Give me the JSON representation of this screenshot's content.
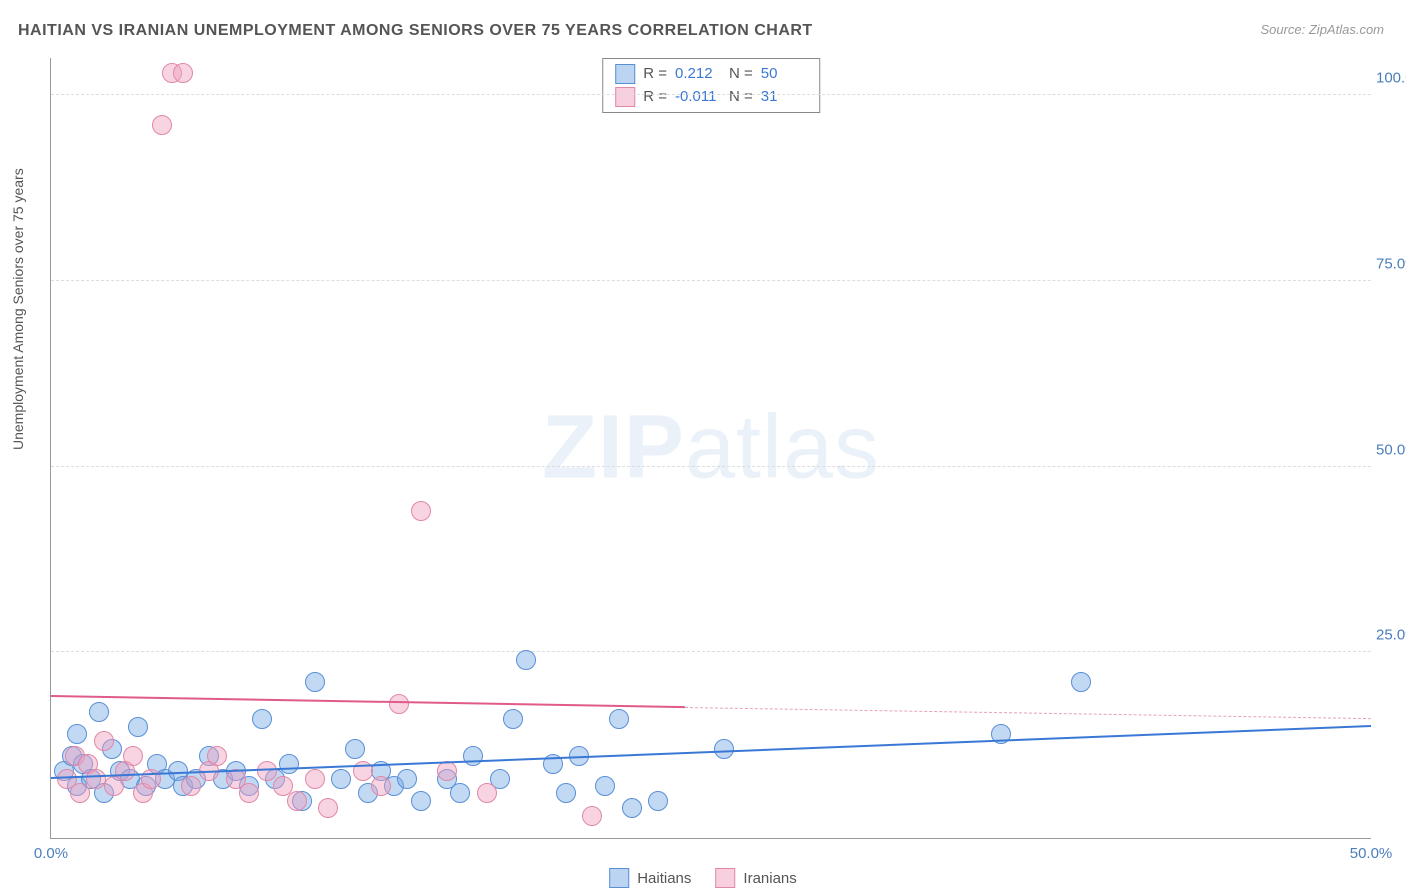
{
  "title": "HAITIAN VS IRANIAN UNEMPLOYMENT AMONG SENIORS OVER 75 YEARS CORRELATION CHART",
  "source_label": "Source: ZipAtlas.com",
  "ylabel": "Unemployment Among Seniors over 75 years",
  "watermark_bold": "ZIP",
  "watermark_rest": "atlas",
  "chart": {
    "type": "scatter",
    "xlim": [
      0,
      50
    ],
    "ylim": [
      0,
      105
    ],
    "xticks": [
      {
        "v": 0,
        "label": "0.0%"
      },
      {
        "v": 50,
        "label": "50.0%"
      }
    ],
    "yticks": [
      {
        "v": 25,
        "label": "25.0%"
      },
      {
        "v": 50,
        "label": "50.0%"
      },
      {
        "v": 75,
        "label": "75.0%"
      },
      {
        "v": 100,
        "label": "100.0%"
      }
    ],
    "colors": {
      "blue_fill": "rgba(120,170,230,0.45)",
      "blue_stroke": "#5a8fd6",
      "blue_line": "#3a78d6",
      "pink_fill": "rgba(240,160,190,0.45)",
      "pink_stroke": "#e088a8",
      "pink_line": "#e05a8a",
      "grid": "#dddddd",
      "axis": "#999999",
      "text": "#555555",
      "tick_text": "#4a7ebb",
      "background": "#ffffff"
    },
    "marker_radius": 9,
    "series": [
      {
        "name": "Haitians",
        "color": "blue",
        "r_value": "0.212",
        "n_value": "50",
        "trend": {
          "x1": 0,
          "y1": 8,
          "x2": 50,
          "y2": 15,
          "dash_after_x": 50
        },
        "points": [
          [
            0.5,
            9
          ],
          [
            0.8,
            11
          ],
          [
            1.0,
            7
          ],
          [
            1.2,
            10
          ],
          [
            1.5,
            8
          ],
          [
            1.8,
            17
          ],
          [
            2.0,
            6
          ],
          [
            2.3,
            12
          ],
          [
            2.6,
            9
          ],
          [
            3.0,
            8
          ],
          [
            3.3,
            15
          ],
          [
            3.6,
            7
          ],
          [
            4.0,
            10
          ],
          [
            4.3,
            8
          ],
          [
            4.8,
            9
          ],
          [
            5.0,
            7
          ],
          [
            5.5,
            8
          ],
          [
            6.0,
            11
          ],
          [
            6.5,
            8
          ],
          [
            7.0,
            9
          ],
          [
            7.5,
            7
          ],
          [
            8.0,
            16
          ],
          [
            8.5,
            8
          ],
          [
            9.0,
            10
          ],
          [
            9.5,
            5
          ],
          [
            10.0,
            21
          ],
          [
            11.0,
            8
          ],
          [
            11.5,
            12
          ],
          [
            12.0,
            6
          ],
          [
            12.5,
            9
          ],
          [
            13.0,
            7
          ],
          [
            13.5,
            8
          ],
          [
            14.0,
            5
          ],
          [
            15.0,
            8
          ],
          [
            15.5,
            6
          ],
          [
            16.0,
            11
          ],
          [
            17.0,
            8
          ],
          [
            17.5,
            16
          ],
          [
            18.0,
            24
          ],
          [
            19.0,
            10
          ],
          [
            19.5,
            6
          ],
          [
            20.0,
            11
          ],
          [
            21.0,
            7
          ],
          [
            21.5,
            16
          ],
          [
            22.0,
            4
          ],
          [
            23.0,
            5
          ],
          [
            25.5,
            12
          ],
          [
            36.0,
            14
          ],
          [
            39.0,
            21
          ],
          [
            1.0,
            14
          ]
        ]
      },
      {
        "name": "Iranians",
        "color": "pink",
        "r_value": "-0.011",
        "n_value": "31",
        "trend": {
          "x1": 0,
          "y1": 19,
          "x2": 24,
          "y2": 17.5,
          "dash_after_x": 24,
          "dash_x2": 50,
          "dash_y2": 16
        },
        "points": [
          [
            0.6,
            8
          ],
          [
            0.9,
            11
          ],
          [
            1.1,
            6
          ],
          [
            1.4,
            10
          ],
          [
            1.7,
            8
          ],
          [
            2.0,
            13
          ],
          [
            2.4,
            7
          ],
          [
            2.8,
            9
          ],
          [
            3.1,
            11
          ],
          [
            3.5,
            6
          ],
          [
            3.8,
            8
          ],
          [
            4.2,
            96
          ],
          [
            4.6,
            103
          ],
          [
            5.0,
            103
          ],
          [
            5.3,
            7
          ],
          [
            6.0,
            9
          ],
          [
            6.3,
            11
          ],
          [
            7.0,
            8
          ],
          [
            7.5,
            6
          ],
          [
            8.2,
            9
          ],
          [
            8.8,
            7
          ],
          [
            9.3,
            5
          ],
          [
            10.0,
            8
          ],
          [
            10.5,
            4
          ],
          [
            11.8,
            9
          ],
          [
            12.5,
            7
          ],
          [
            13.2,
            18
          ],
          [
            14.0,
            44
          ],
          [
            15.0,
            9
          ],
          [
            16.5,
            6
          ],
          [
            20.5,
            3
          ]
        ]
      }
    ],
    "legend": {
      "items": [
        {
          "swatch": "blue",
          "label": "Haitians"
        },
        {
          "swatch": "pink",
          "label": "Iranians"
        }
      ]
    }
  }
}
